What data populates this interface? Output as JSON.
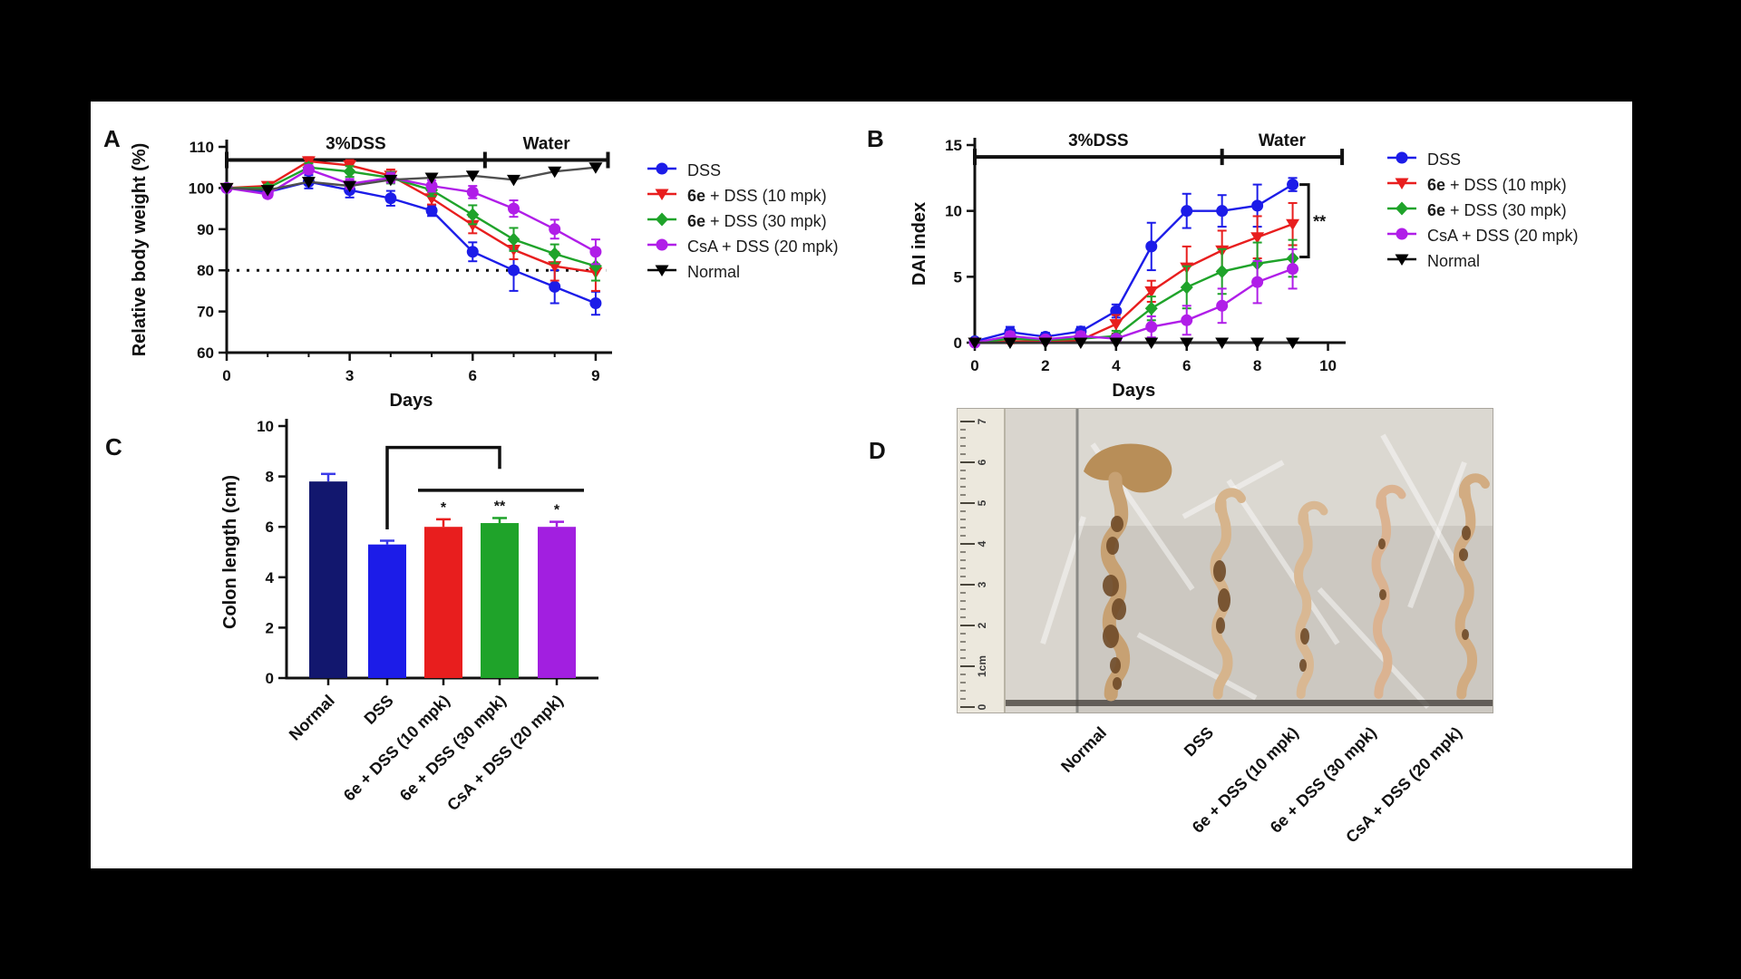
{
  "palette": {
    "dss_blue": "#1c1ce8",
    "e6_10_red": "#e81e1e",
    "e6_30_green": "#1fa32a",
    "csa_magenta": "#b01ee8",
    "normal_black": "#000000",
    "normal_line_gray": "#4f4f4f",
    "navy_bar": "#12176e",
    "purple_bar": "#a21fe0",
    "star_red": "#e81e1e",
    "axis": "#111111"
  },
  "legend": {
    "items": [
      {
        "prefix": "",
        "rest": "DSS",
        "color": "#1c1ce8",
        "marker": "circle"
      },
      {
        "prefix": "6e",
        "rest": " + DSS (10 mpk)",
        "color": "#e81e1e",
        "marker": "triangle-down"
      },
      {
        "prefix": "6e",
        "rest": " + DSS (30 mpk)",
        "color": "#1fa32a",
        "marker": "diamond"
      },
      {
        "prefix": "",
        "rest": "CsA + DSS (20 mpk)",
        "color": "#b01ee8",
        "marker": "circle"
      },
      {
        "prefix": "",
        "rest": "Normal",
        "color": "#000000",
        "marker": "triangle-down"
      }
    ]
  },
  "chart_data": [
    {
      "id": "A",
      "panel_label": "A",
      "type": "line",
      "ylabel": "Relative body weight (%)",
      "xlabel": "Days",
      "xlim": [
        0,
        9.4
      ],
      "xticks": [
        0,
        3,
        6,
        9
      ],
      "x_minor_step": 1,
      "ylim": [
        60,
        110
      ],
      "yticks": [
        60,
        70,
        80,
        90,
        100,
        110
      ],
      "dotted_line_y": 80,
      "phase_bar": {
        "y": 106.8,
        "segments": [
          {
            "label": "3%DSS",
            "from": 0,
            "to": 6.3
          },
          {
            "label": "Water",
            "from": 6.3,
            "to": 9.3
          }
        ]
      },
      "x": [
        0,
        1,
        2,
        3,
        4,
        5,
        6,
        7,
        8,
        9
      ],
      "series": [
        {
          "name": "DSS",
          "color": "#1c1ce8",
          "marker": "circle",
          "values": [
            100,
            99,
            101.5,
            99.5,
            97.5,
            94.5,
            84.5,
            80,
            76,
            72
          ],
          "errors": [
            0.8,
            1,
            1.6,
            1.8,
            1.8,
            1.3,
            2.3,
            5,
            4,
            2.8
          ]
        },
        {
          "name": "6e + DSS (10 mpk)",
          "color": "#e81e1e",
          "marker": "triangle-down",
          "values": [
            100,
            100.5,
            106.5,
            105.5,
            103,
            97.5,
            91,
            85,
            81,
            79.5
          ],
          "errors": [
            0.5,
            0.8,
            1,
            1.3,
            1.5,
            1.5,
            2,
            2.3,
            3.5,
            4.5
          ]
        },
        {
          "name": "6e + DSS (30 mpk)",
          "color": "#1fa32a",
          "marker": "diamond",
          "values": [
            100,
            100,
            105,
            104,
            102.5,
            99.5,
            93.5,
            87.5,
            84,
            81
          ],
          "errors": [
            0.5,
            0.8,
            1,
            1.3,
            1.4,
            1.5,
            2.3,
            2.8,
            2.3,
            3.5
          ]
        },
        {
          "name": "CsA + DSS (20 mpk)",
          "color": "#b01ee8",
          "marker": "circle",
          "values": [
            100,
            98.5,
            104.5,
            101,
            102.5,
            100.5,
            99,
            95,
            90,
            84.5
          ],
          "errors": [
            0.5,
            0.8,
            1,
            1.2,
            1.2,
            1.4,
            1.5,
            2,
            2.3,
            3
          ]
        },
        {
          "name": "Normal",
          "color": "#000000",
          "line_color": "#4f4f4f",
          "marker": "triangle-down",
          "values": [
            100,
            99.5,
            101.5,
            100.5,
            102,
            102.5,
            103,
            102,
            104,
            105
          ],
          "errors": [
            0,
            0,
            0,
            0,
            0,
            0,
            0,
            0,
            0,
            0
          ]
        }
      ]
    },
    {
      "id": "B",
      "panel_label": "B",
      "type": "line",
      "ylabel": "DAI index",
      "xlabel": "Days",
      "xlim": [
        0,
        10.5
      ],
      "xticks": [
        0,
        2,
        4,
        6,
        8,
        10
      ],
      "x_minor_step": 1,
      "ylim": [
        0,
        15
      ],
      "yticks": [
        0,
        5,
        10,
        15
      ],
      "phase_bar": {
        "y": 14.1,
        "segments": [
          {
            "label": "3%DSS",
            "from": 0,
            "to": 7
          },
          {
            "label": "Water",
            "from": 7,
            "to": 10.4
          }
        ]
      },
      "significance": {
        "label": "**",
        "x": 9.45,
        "y_top": 12,
        "y_bottom": 6.5
      },
      "x": [
        0,
        1,
        2,
        3,
        4,
        5,
        6,
        7,
        8,
        9
      ],
      "series": [
        {
          "name": "DSS",
          "color": "#1c1ce8",
          "marker": "circle",
          "values": [
            0.1,
            0.8,
            0.45,
            0.85,
            2.4,
            7.3,
            10,
            10,
            10.4,
            12
          ],
          "errors": [
            0.2,
            0.4,
            0.3,
            0.35,
            0.5,
            1.8,
            1.3,
            1.2,
            1.6,
            0.5
          ]
        },
        {
          "name": "6e + DSS (10 mpk)",
          "color": "#e81e1e",
          "marker": "triangle-down",
          "values": [
            0,
            0.1,
            0.1,
            0.2,
            1.4,
            3.9,
            5.7,
            7,
            8,
            9
          ],
          "errors": [
            0,
            0.15,
            0.15,
            0.2,
            0.7,
            0.8,
            1.6,
            1.5,
            1.6,
            1.6
          ]
        },
        {
          "name": "6e + DSS (30 mpk)",
          "color": "#1fa32a",
          "marker": "diamond",
          "values": [
            0,
            0.3,
            0.2,
            0.3,
            0.5,
            2.6,
            4.2,
            5.4,
            6,
            6.4
          ],
          "errors": [
            0,
            0.2,
            0.15,
            0.2,
            0.4,
            0.9,
            1.6,
            1.7,
            1.6,
            1.4
          ]
        },
        {
          "name": "CsA + DSS (20 mpk)",
          "color": "#b01ee8",
          "marker": "circle",
          "values": [
            0,
            0.5,
            0.25,
            0.5,
            0.3,
            1.2,
            1.7,
            2.8,
            4.6,
            5.6
          ],
          "errors": [
            0,
            0.3,
            0.15,
            0.3,
            0.25,
            0.8,
            1.1,
            1.3,
            1.6,
            1.5
          ]
        },
        {
          "name": "Normal",
          "color": "#000000",
          "line_color": "#333333",
          "marker": "triangle-down",
          "values": [
            0,
            0,
            0,
            0,
            0,
            0,
            0,
            0,
            0,
            0
          ],
          "errors": [
            0,
            0,
            0,
            0,
            0,
            0,
            0,
            0,
            0,
            0
          ]
        }
      ]
    },
    {
      "id": "C",
      "panel_label": "C",
      "type": "bar",
      "ylabel": "Colon length (cm)",
      "ylim": [
        0,
        10
      ],
      "yticks": [
        0,
        2,
        4,
        6,
        8,
        10
      ],
      "categories": [
        "Normal",
        "DSS",
        "6e + DSS (10 mpk)",
        "6e + DSS (30 mpk)",
        "CsA + DSS (20 mpk)"
      ],
      "values": [
        7.8,
        5.3,
        6.0,
        6.15,
        6.0
      ],
      "errors": [
        0.3,
        0.15,
        0.3,
        0.2,
        0.2
      ],
      "bar_colors": [
        "#12176e",
        "#1c1ce8",
        "#e81e1e",
        "#1fa32a",
        "#a21fe0"
      ],
      "error_colors": [
        "#3a3ae8",
        "#3a3ae8",
        "#e81e1e",
        "#1fa32a",
        "#a21fe0"
      ],
      "sig_stars": [
        "",
        "",
        "*",
        "**",
        "*"
      ],
      "comparison_bracket": {
        "from_index": 1,
        "to_index": 3,
        "y": 9.15,
        "drop_left": 5.9,
        "drop_right": 8.3
      },
      "treatment_line": {
        "from_index": 2,
        "to_index": 4,
        "y": 7.45
      }
    }
  ],
  "panel_d": {
    "panel_label": "D",
    "ruler_marks": [
      "7",
      "6",
      "5",
      "4",
      "3",
      "2",
      "1cm",
      "0"
    ],
    "columns": [
      "Normal",
      "DSS",
      "6e + DSS (10 mpk)",
      "6e + DSS (30 mpk)",
      "CsA + DSS (20 mpk)"
    ]
  }
}
